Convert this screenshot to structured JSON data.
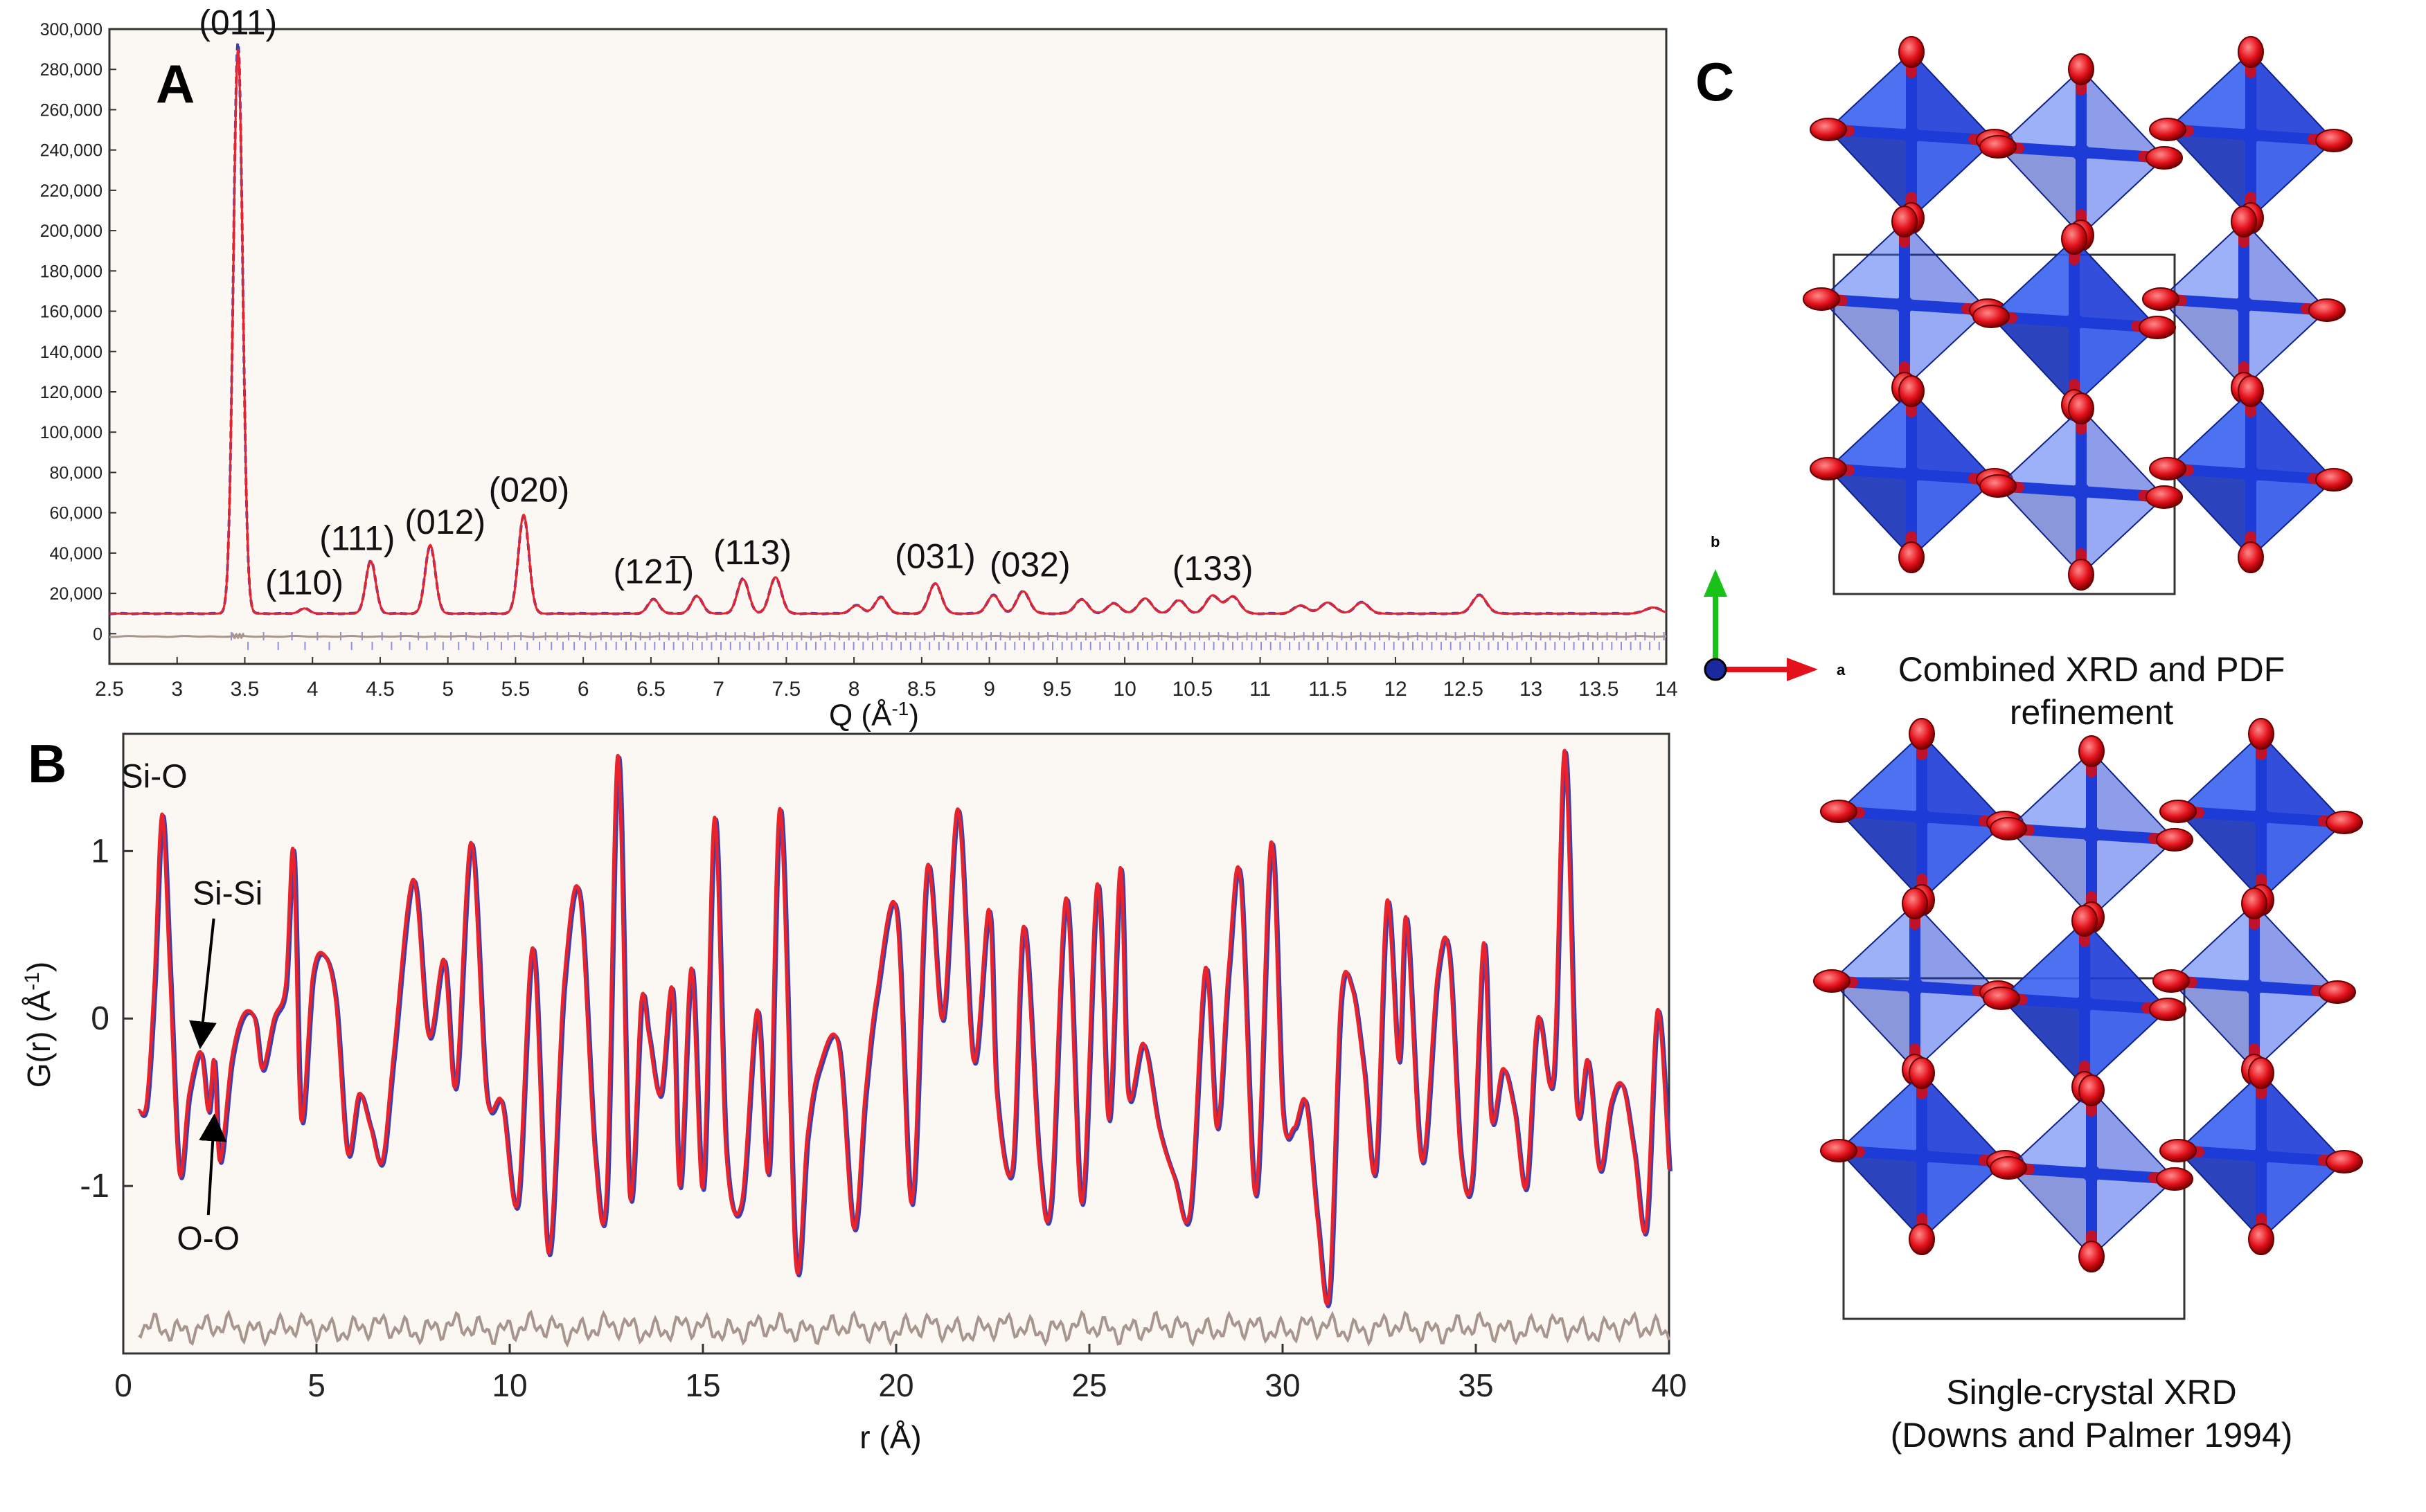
{
  "colors": {
    "observed": "#3b3fb0",
    "calculated": "#e8232b",
    "difference": "#a8968e",
    "tick_marks": "#8f8fe6",
    "tetrahedra": "#1d3bd6",
    "oxygen": "#e3111b",
    "axis_b": "#19c219",
    "axis_a": "#e3111b"
  },
  "panels": {
    "A": "A",
    "B": "B",
    "C": "C"
  },
  "chart_data": [
    {
      "panel": "A",
      "type": "line",
      "title": "",
      "xlabel_text": "Q (Å",
      "xlabel_sup": "-1",
      "xlabel_close": ")",
      "ylabel": "",
      "xlim": [
        2.5,
        14
      ],
      "ylim": [
        -15000,
        300000
      ],
      "grid": false,
      "x_ticks": [
        "2.5",
        "3",
        "3.5",
        "4",
        "4.5",
        "5",
        "5.5",
        "6",
        "6.5",
        "7",
        "7.5",
        "8",
        "8.5",
        "9",
        "9.5",
        "10",
        "10.5",
        "11",
        "11.5",
        "12",
        "12.5",
        "13",
        "13.5",
        "14"
      ],
      "y_ticks": [
        "0",
        "20,000",
        "40,000",
        "60,000",
        "80,000",
        "100,000",
        "120,000",
        "140,000",
        "160,000",
        "180,000",
        "200,000",
        "220,000",
        "240,000",
        "260,000",
        "280,000",
        "300,000"
      ],
      "baseline": 10000,
      "peaks": [
        {
          "q": 3.45,
          "intensity": 290000
        },
        {
          "q": 3.94,
          "intensity": 12500
        },
        {
          "q": 4.43,
          "intensity": 36000
        },
        {
          "q": 4.87,
          "intensity": 44000
        },
        {
          "q": 5.56,
          "intensity": 59000
        },
        {
          "q": 6.52,
          "intensity": 17000
        },
        {
          "q": 6.84,
          "intensity": 18500
        },
        {
          "q": 7.18,
          "intensity": 27000
        },
        {
          "q": 7.42,
          "intensity": 28000
        },
        {
          "q": 8.02,
          "intensity": 14000
        },
        {
          "q": 8.2,
          "intensity": 18000
        },
        {
          "q": 8.6,
          "intensity": 25000
        },
        {
          "q": 9.03,
          "intensity": 19000
        },
        {
          "q": 9.25,
          "intensity": 21000
        },
        {
          "q": 9.68,
          "intensity": 17000
        },
        {
          "q": 9.92,
          "intensity": 15000
        },
        {
          "q": 10.15,
          "intensity": 17500
        },
        {
          "q": 10.4,
          "intensity": 16500
        },
        {
          "q": 10.65,
          "intensity": 19000
        },
        {
          "q": 10.8,
          "intensity": 18500
        },
        {
          "q": 11.3,
          "intensity": 14000
        },
        {
          "q": 11.5,
          "intensity": 15500
        },
        {
          "q": 11.75,
          "intensity": 15500
        },
        {
          "q": 12.62,
          "intensity": 19000
        },
        {
          "q": 13.9,
          "intensity": 13000
        }
      ],
      "peak_labels": [
        {
          "q": 3.45,
          "y": 292000,
          "text": "(011)",
          "bar": false
        },
        {
          "q": 3.94,
          "y": 14000,
          "text": "(110)",
          "bar": false
        },
        {
          "q": 4.33,
          "y": 36000,
          "text": "(111)",
          "bar": false
        },
        {
          "q": 4.98,
          "y": 44000,
          "text": "(012)",
          "bar": false
        },
        {
          "q": 5.6,
          "y": 60000,
          "text": "(020)",
          "bar": false
        },
        {
          "q": 6.52,
          "y": 19500,
          "text": "(121)",
          "bar": true
        },
        {
          "q": 7.25,
          "y": 29000,
          "text": "(113)",
          "bar": false
        },
        {
          "q": 8.6,
          "y": 27000,
          "text": "(031)",
          "bar": false
        },
        {
          "q": 9.3,
          "y": 23000,
          "text": "(032)",
          "bar": false
        },
        {
          "q": 10.65,
          "y": 21000,
          "text": "(133)",
          "bar": false
        }
      ],
      "series": [
        {
          "name": "observed",
          "style": "dashed"
        },
        {
          "name": "calculated",
          "style": "solid"
        },
        {
          "name": "difference",
          "style": "solid"
        }
      ]
    },
    {
      "panel": "B",
      "type": "line",
      "title": "",
      "xlabel": "r (Å)",
      "ylabel_text": "G(r) (Å",
      "ylabel_sup": "-1",
      "ylabel_close": ")",
      "xlim": [
        0,
        40
      ],
      "ylim": [
        -2.0,
        1.7
      ],
      "grid": false,
      "x_ticks": [
        0,
        5,
        10,
        15,
        20,
        25,
        30,
        35,
        40
      ],
      "y_ticks": [
        -1,
        0,
        1
      ],
      "difference_offset": -1.85,
      "series": [
        {
          "name": "calculated",
          "x": [
            0.4,
            0.6,
            0.8,
            1.0,
            1.2,
            1.45,
            1.7,
            2.0,
            2.2,
            2.35,
            2.5,
            2.8,
            3.1,
            3.4,
            3.6,
            3.9,
            4.2,
            4.4,
            4.6,
            4.9,
            5.2,
            5.5,
            5.8,
            6.1,
            6.4,
            6.7,
            7.0,
            7.5,
            7.9,
            8.3,
            8.6,
            9.0,
            9.4,
            9.8,
            10.2,
            10.6,
            11.0,
            11.4,
            11.8,
            12.2,
            12.5,
            12.8,
            13.1,
            13.4,
            13.6,
            13.9,
            14.2,
            14.4,
            14.7,
            15.0,
            15.3,
            15.6,
            16.0,
            16.4,
            16.7,
            17.0,
            17.4,
            17.7,
            18.0,
            18.5,
            18.9,
            19.2,
            19.5,
            20.0,
            20.4,
            20.8,
            21.2,
            21.6,
            22.0,
            22.4,
            22.6,
            23.0,
            23.3,
            23.7,
            24.0,
            24.4,
            24.8,
            25.2,
            25.5,
            25.8,
            26.0,
            26.4,
            26.8,
            27.2,
            27.6,
            28.0,
            28.3,
            28.6,
            28.9,
            29.3,
            29.7,
            30.0,
            30.3,
            30.6,
            30.9,
            31.2,
            31.5,
            31.8,
            32.1,
            32.4,
            32.7,
            33.0,
            33.2,
            33.6,
            34.0,
            34.3,
            34.6,
            34.9,
            35.2,
            35.4,
            35.7,
            36.0,
            36.3,
            36.6,
            37.0,
            37.3,
            37.6,
            37.9,
            38.2,
            38.5,
            38.8,
            39.1,
            39.4,
            39.7,
            40.0
          ],
          "y": [
            -0.55,
            -0.5,
            0.2,
            1.22,
            0.3,
            -0.92,
            -0.45,
            -0.2,
            -0.55,
            -0.25,
            -0.85,
            -0.25,
            0.02,
            0.0,
            -0.3,
            0.0,
            0.2,
            1.0,
            -0.6,
            0.25,
            0.38,
            0.1,
            -0.8,
            -0.45,
            -0.65,
            -0.85,
            -0.2,
            0.83,
            -0.1,
            0.35,
            -0.4,
            1.05,
            -0.45,
            -0.5,
            -1.1,
            0.42,
            -1.4,
            0.2,
            0.75,
            -0.8,
            -1.05,
            1.57,
            -1.05,
            0.1,
            -0.1,
            -0.45,
            0.18,
            -1.0,
            0.3,
            -1.0,
            1.2,
            -0.8,
            -1.1,
            0.05,
            -0.9,
            1.25,
            -1.45,
            -0.7,
            -0.3,
            -0.15,
            -1.25,
            -0.45,
            0.15,
            0.65,
            -1.1,
            0.9,
            0.0,
            1.25,
            -0.25,
            0.65,
            -0.45,
            -0.9,
            0.55,
            -0.85,
            -1.1,
            0.72,
            -1.1,
            0.8,
            -0.6,
            0.9,
            -0.45,
            -0.15,
            -0.65,
            -0.95,
            -1.15,
            0.3,
            -0.65,
            0.3,
            0.85,
            -1.05,
            1.05,
            -0.55,
            -0.65,
            -0.5,
            -1.2,
            -1.65,
            0.1,
            0.18,
            -0.3,
            -0.9,
            0.7,
            -0.25,
            0.6,
            -0.85,
            0.25,
            0.4,
            -0.8,
            -0.95,
            0.45,
            -0.6,
            -0.3,
            -0.55,
            -1.0,
            0.0,
            -0.35,
            1.6,
            -0.5,
            -0.25,
            -0.9,
            -0.5,
            -0.4,
            -0.8,
            -1.25,
            0.05,
            -0.9
          ]
        },
        {
          "name": "observed",
          "style": "solid"
        },
        {
          "name": "difference",
          "style": "solid"
        }
      ],
      "annotations": [
        {
          "text": "Si-O",
          "x": 0.8,
          "y": 1.38
        },
        {
          "text": "Si-Si",
          "x": 2.7,
          "y": 0.68,
          "arrow_to": [
            2.0,
            -0.15
          ]
        },
        {
          "text": "O-O",
          "x": 2.2,
          "y": -1.38,
          "arrow_to": [
            2.35,
            -0.6
          ]
        }
      ]
    }
  ],
  "structure": {
    "top_caption_line1": "Combined XRD and PDF",
    "top_caption_line2": "refinement",
    "bottom_caption_line1": "Single-crystal XRD",
    "bottom_caption_line2": "(Downs and Palmer 1994)",
    "axis_b_label": "b",
    "axis_a_label": "a"
  }
}
